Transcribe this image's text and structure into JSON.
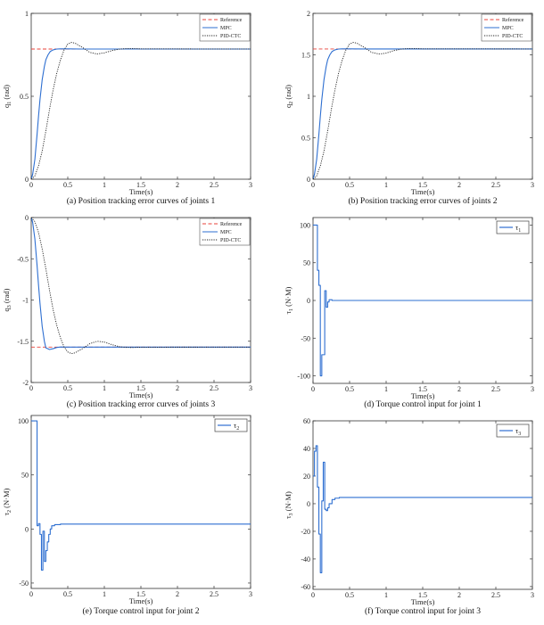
{
  "chart_data": [
    {
      "id": "a",
      "type": "line",
      "caption": "(a) Position tracking error curves of joints 1",
      "xlabel": "Time(s)",
      "ylabel": "q_1 (rad)",
      "ylabel_main": "q",
      "ylabel_sub": "1",
      "ylabel_unit": " (rad)",
      "xlim": [
        0,
        3
      ],
      "ylim": [
        0,
        1
      ],
      "xticks": [
        0,
        0.5,
        1,
        1.5,
        2,
        2.5,
        3
      ],
      "xtick_labels": [
        "0",
        "0.5",
        "1",
        "1.5",
        "2",
        "2.5",
        "3"
      ],
      "yticks": [
        0,
        0.5,
        1
      ],
      "ytick_labels": [
        "0",
        "0.5",
        "1"
      ],
      "legend_position": "top-right",
      "series": [
        {
          "name": "Reference",
          "color": "#e8423a",
          "style": "dashed",
          "x": [
            0,
            3
          ],
          "y": [
            0.785,
            0.785
          ]
        },
        {
          "name": "MPC",
          "color": "#2e6fd1",
          "style": "solid",
          "x": [
            0,
            0.02,
            0.05,
            0.08,
            0.1,
            0.12,
            0.15,
            0.18,
            0.2,
            0.23,
            0.26,
            0.3,
            0.35,
            0.4,
            0.5,
            0.7,
            1,
            3
          ],
          "y": [
            0,
            0.03,
            0.12,
            0.27,
            0.38,
            0.48,
            0.6,
            0.68,
            0.72,
            0.75,
            0.77,
            0.78,
            0.785,
            0.786,
            0.786,
            0.785,
            0.785,
            0.785
          ]
        },
        {
          "name": "PID-CTC",
          "color": "#222222",
          "style": "dotted",
          "x": [
            0,
            0.05,
            0.1,
            0.15,
            0.2,
            0.25,
            0.3,
            0.35,
            0.4,
            0.45,
            0.5,
            0.55,
            0.6,
            0.7,
            0.8,
            0.9,
            1,
            1.1,
            1.2,
            1.3,
            1.4,
            1.5,
            3
          ],
          "y": [
            0,
            0.02,
            0.08,
            0.17,
            0.29,
            0.42,
            0.54,
            0.64,
            0.72,
            0.78,
            0.815,
            0.825,
            0.82,
            0.795,
            0.765,
            0.755,
            0.762,
            0.775,
            0.784,
            0.788,
            0.788,
            0.786,
            0.785
          ]
        }
      ]
    },
    {
      "id": "b",
      "type": "line",
      "caption": "(b) Position tracking error curves of joints 2",
      "xlabel": "Time(s)",
      "ylabel": "q_2 (rad)",
      "ylabel_main": "q",
      "ylabel_sub": "2",
      "ylabel_unit": " (rad)",
      "xlim": [
        0,
        3
      ],
      "ylim": [
        0,
        2
      ],
      "xticks": [
        0,
        0.5,
        1,
        1.5,
        2,
        2.5,
        3
      ],
      "xtick_labels": [
        "0",
        "0.5",
        "1",
        "1.5",
        "2",
        "2.5",
        "3"
      ],
      "yticks": [
        0,
        0.5,
        1,
        1.5,
        2
      ],
      "ytick_labels": [
        "0",
        "0.5",
        "1",
        "1.5",
        "2"
      ],
      "legend_position": "top-right",
      "series": [
        {
          "name": "Reference",
          "color": "#e8423a",
          "style": "dashed",
          "x": [
            0,
            3
          ],
          "y": [
            1.571,
            1.571
          ]
        },
        {
          "name": "MPC",
          "color": "#2e6fd1",
          "style": "solid",
          "x": [
            0,
            0.02,
            0.05,
            0.08,
            0.1,
            0.12,
            0.15,
            0.18,
            0.2,
            0.23,
            0.26,
            0.3,
            0.35,
            0.4,
            0.5,
            0.7,
            1,
            3
          ],
          "y": [
            0,
            0.06,
            0.24,
            0.54,
            0.76,
            0.96,
            1.2,
            1.36,
            1.44,
            1.5,
            1.54,
            1.56,
            1.57,
            1.572,
            1.572,
            1.571,
            1.571,
            1.571
          ]
        },
        {
          "name": "PID-CTC",
          "color": "#222222",
          "style": "dotted",
          "x": [
            0,
            0.05,
            0.1,
            0.15,
            0.2,
            0.25,
            0.3,
            0.35,
            0.4,
            0.45,
            0.5,
            0.55,
            0.6,
            0.7,
            0.8,
            0.9,
            1,
            1.1,
            1.2,
            1.3,
            1.4,
            1.5,
            3
          ],
          "y": [
            0,
            0.04,
            0.16,
            0.34,
            0.58,
            0.84,
            1.08,
            1.28,
            1.44,
            1.56,
            1.63,
            1.65,
            1.64,
            1.59,
            1.53,
            1.51,
            1.52,
            1.55,
            1.568,
            1.576,
            1.576,
            1.572,
            1.571
          ]
        }
      ]
    },
    {
      "id": "c",
      "type": "line",
      "caption": "(c) Position tracking error curves of joints 3",
      "xlabel": "Time(s)",
      "ylabel": "q_3 (rad)",
      "ylabel_main": "q",
      "ylabel_sub": "3",
      "ylabel_unit": " (rad)",
      "xlim": [
        0,
        3
      ],
      "ylim": [
        -2,
        0
      ],
      "xticks": [
        0,
        0.5,
        1,
        1.5,
        2,
        2.5,
        3
      ],
      "xtick_labels": [
        "0",
        "0.5",
        "1",
        "1.5",
        "2",
        "2.5",
        "3"
      ],
      "yticks": [
        -2,
        -1.5,
        -1,
        -0.5,
        0
      ],
      "ytick_labels": [
        "-2",
        "-1.5",
        "-1",
        "-0.5",
        "0"
      ],
      "legend_position": "top-right",
      "series": [
        {
          "name": "Reference",
          "color": "#e8423a",
          "style": "dashed",
          "x": [
            0,
            3
          ],
          "y": [
            -1.571,
            -1.571
          ]
        },
        {
          "name": "MPC",
          "color": "#2e6fd1",
          "style": "solid",
          "x": [
            0,
            0.02,
            0.05,
            0.08,
            0.1,
            0.12,
            0.15,
            0.18,
            0.2,
            0.25,
            0.3,
            0.35,
            0.4,
            0.5,
            0.7,
            1,
            3
          ],
          "y": [
            0,
            -0.06,
            -0.26,
            -0.58,
            -0.82,
            -1.04,
            -1.32,
            -1.5,
            -1.58,
            -1.6,
            -1.59,
            -1.575,
            -1.57,
            -1.571,
            -1.571,
            -1.571,
            -1.571
          ]
        },
        {
          "name": "PID-CTC",
          "color": "#222222",
          "style": "dotted",
          "x": [
            0,
            0.05,
            0.1,
            0.15,
            0.2,
            0.25,
            0.3,
            0.35,
            0.4,
            0.45,
            0.5,
            0.55,
            0.6,
            0.7,
            0.8,
            0.9,
            1,
            1.1,
            1.2,
            1.3,
            1.4,
            1.5,
            3
          ],
          "y": [
            0,
            -0.05,
            -0.18,
            -0.38,
            -0.62,
            -0.88,
            -1.12,
            -1.31,
            -1.46,
            -1.57,
            -1.63,
            -1.65,
            -1.64,
            -1.59,
            -1.53,
            -1.5,
            -1.51,
            -1.54,
            -1.565,
            -1.575,
            -1.576,
            -1.572,
            -1.571
          ]
        }
      ]
    },
    {
      "id": "d",
      "type": "line",
      "caption": "(d) Torque control input for joint 1",
      "xlabel": "Time(s)",
      "ylabel": "τ_1 (N·M)",
      "ylabel_main": "τ",
      "ylabel_sub": "1",
      "ylabel_unit": " (N·M)",
      "xlim": [
        0,
        3
      ],
      "ylim": [
        -110,
        110
      ],
      "xticks": [
        0,
        0.5,
        1,
        1.5,
        2,
        2.5,
        3
      ],
      "xtick_labels": [
        "0",
        "0.5",
        "1",
        "1.5",
        "2",
        "2.5",
        "3"
      ],
      "yticks": [
        -100,
        -50,
        0,
        50,
        100
      ],
      "ytick_labels": [
        "-100",
        "-50",
        "0",
        "50",
        "100"
      ],
      "legend_position": "top-right",
      "legend_label_main": "τ",
      "legend_label_sub": "1",
      "series": [
        {
          "name": "τ1",
          "color": "#2e6fd1",
          "style": "solid",
          "x": [
            0,
            0.06,
            0.06,
            0.08,
            0.08,
            0.1,
            0.1,
            0.12,
            0.12,
            0.16,
            0.16,
            0.18,
            0.18,
            0.2,
            0.2,
            0.22,
            0.22,
            0.26,
            0.26,
            3
          ],
          "y": [
            100,
            100,
            40,
            40,
            20,
            20,
            -100,
            -100,
            -72,
            -72,
            13,
            13,
            -9,
            -9,
            -2,
            -2,
            1,
            1,
            0,
            0
          ]
        }
      ]
    },
    {
      "id": "e",
      "type": "line",
      "caption": "(e) Torque control input for joint 2",
      "xlabel": "Time(s)",
      "ylabel": "τ_2 (N·M)",
      "ylabel_main": "τ",
      "ylabel_sub": "2",
      "ylabel_unit": " (N·M)",
      "xlim": [
        0,
        3
      ],
      "ylim": [
        -55,
        105
      ],
      "xticks": [
        0,
        0.5,
        1,
        1.5,
        2,
        2.5,
        3
      ],
      "xtick_labels": [
        "0",
        "0.5",
        "1",
        "1.5",
        "2",
        "2.5",
        "3"
      ],
      "yticks": [
        -50,
        0,
        50,
        100
      ],
      "ytick_labels": [
        "-50",
        "0",
        "50",
        "100"
      ],
      "legend_position": "top-right",
      "legend_label_main": "τ",
      "legend_label_sub": "2",
      "series": [
        {
          "name": "τ2",
          "color": "#2e6fd1",
          "style": "solid",
          "x": [
            0,
            0.08,
            0.08,
            0.1,
            0.1,
            0.12,
            0.12,
            0.14,
            0.14,
            0.16,
            0.16,
            0.18,
            0.18,
            0.2,
            0.2,
            0.22,
            0.22,
            0.24,
            0.24,
            0.26,
            0.26,
            0.28,
            0.28,
            0.32,
            0.32,
            0.4,
            0.4,
            3
          ],
          "y": [
            100,
            100,
            3,
            3,
            5,
            5,
            -5,
            -5,
            -38,
            -38,
            -2,
            -2,
            -30,
            -30,
            -20,
            -20,
            -12,
            -12,
            -5,
            -5,
            0,
            0,
            3,
            3,
            4,
            4,
            4.5,
            4.5
          ]
        }
      ]
    },
    {
      "id": "f",
      "type": "line",
      "caption": "(f) Torque control input for joint 3",
      "xlabel": "Time(s)",
      "ylabel": "τ_3 (N·M)",
      "ylabel_main": "τ",
      "ylabel_sub": "3",
      "ylabel_unit": " (N·M)",
      "xlim": [
        0,
        3
      ],
      "ylim": [
        -62,
        60
      ],
      "xticks": [
        0,
        0.5,
        1,
        1.5,
        2,
        2.5,
        3
      ],
      "xtick_labels": [
        "0",
        "0.5",
        "1",
        "1.5",
        "2",
        "2.5",
        "3"
      ],
      "yticks": [
        -60,
        -40,
        -20,
        0,
        20,
        40,
        60
      ],
      "ytick_labels": [
        "-60",
        "-40",
        "-20",
        "0",
        "20",
        "40",
        "60"
      ],
      "legend_position": "top-right",
      "legend_label_main": "τ",
      "legend_label_sub": "3",
      "series": [
        {
          "name": "τ3",
          "color": "#2e6fd1",
          "style": "solid",
          "x": [
            0,
            0.02,
            0.02,
            0.04,
            0.04,
            0.06,
            0.06,
            0.08,
            0.08,
            0.1,
            0.1,
            0.12,
            0.12,
            0.14,
            0.14,
            0.16,
            0.16,
            0.18,
            0.18,
            0.2,
            0.2,
            0.22,
            0.22,
            0.26,
            0.26,
            0.3,
            0.3,
            0.36,
            0.36,
            3
          ],
          "y": [
            20,
            20,
            38,
            38,
            42,
            42,
            12,
            12,
            -22,
            -22,
            -50,
            -50,
            2,
            2,
            30,
            30,
            -4,
            -4,
            -5,
            -5,
            -3,
            -3,
            0,
            0,
            3,
            3,
            4,
            4,
            4.5,
            4.5
          ]
        }
      ]
    }
  ]
}
